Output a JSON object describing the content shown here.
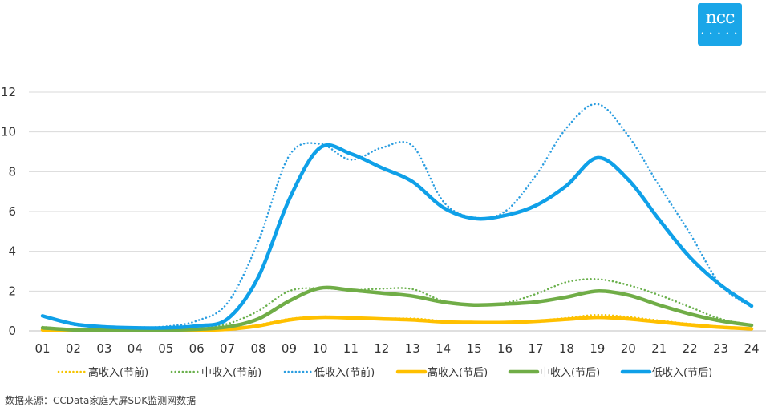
{
  "logo": {
    "text": "ncc",
    "dots": "• • • • •"
  },
  "source_text": "数据来源：CCData家庭大屏SDK监测网数据",
  "chart_data": {
    "type": "line",
    "categories": [
      "01",
      "02",
      "03",
      "04",
      "05",
      "06",
      "07",
      "08",
      "09",
      "10",
      "11",
      "12",
      "13",
      "14",
      "15",
      "16",
      "17",
      "18",
      "19",
      "20",
      "21",
      "22",
      "23",
      "24"
    ],
    "ylim": [
      0,
      12
    ],
    "yticks": [
      0,
      2,
      4,
      6,
      8,
      10,
      12
    ],
    "grid": true,
    "legend_position": "bottom",
    "series": [
      {
        "name": "高收入(节前)",
        "color": "#f5c400",
        "style": "dotted",
        "values": [
          0.05,
          0.02,
          0.02,
          0.02,
          0.03,
          0.05,
          0.12,
          0.3,
          0.6,
          0.72,
          0.68,
          0.62,
          0.62,
          0.5,
          0.42,
          0.42,
          0.5,
          0.65,
          0.8,
          0.7,
          0.52,
          0.35,
          0.22,
          0.12
        ]
      },
      {
        "name": "中收入(节前)",
        "color": "#6ab04c",
        "style": "dotted",
        "values": [
          0.2,
          0.05,
          0.03,
          0.03,
          0.05,
          0.1,
          0.35,
          1.0,
          2.0,
          2.15,
          2.05,
          2.12,
          2.1,
          1.5,
          1.3,
          1.4,
          1.85,
          2.45,
          2.6,
          2.3,
          1.8,
          1.2,
          0.6,
          0.3
        ]
      },
      {
        "name": "低收入(节前)",
        "color": "#2a9de0",
        "style": "dotted",
        "values": [
          0.75,
          0.3,
          0.2,
          0.18,
          0.22,
          0.5,
          1.4,
          4.5,
          8.8,
          9.4,
          8.6,
          9.2,
          9.3,
          6.5,
          5.7,
          6.0,
          7.8,
          10.2,
          11.4,
          9.8,
          7.3,
          4.9,
          2.3,
          1.2
        ]
      },
      {
        "name": "高收入(节后)",
        "color": "#ffc000",
        "style": "solid",
        "values": [
          0.05,
          0.02,
          0.02,
          0.02,
          0.02,
          0.03,
          0.08,
          0.25,
          0.55,
          0.68,
          0.65,
          0.6,
          0.55,
          0.45,
          0.42,
          0.42,
          0.48,
          0.58,
          0.68,
          0.6,
          0.45,
          0.3,
          0.18,
          0.1
        ]
      },
      {
        "name": "中收入(节后)",
        "color": "#70ad47",
        "style": "solid",
        "values": [
          0.15,
          0.05,
          0.03,
          0.03,
          0.04,
          0.08,
          0.2,
          0.6,
          1.5,
          2.15,
          2.05,
          1.9,
          1.75,
          1.45,
          1.3,
          1.35,
          1.45,
          1.7,
          2.0,
          1.8,
          1.3,
          0.85,
          0.5,
          0.28
        ]
      },
      {
        "name": "低收入(节后)",
        "color": "#0fa0e8",
        "style": "solid",
        "values": [
          0.75,
          0.35,
          0.2,
          0.15,
          0.15,
          0.25,
          0.6,
          2.7,
          6.6,
          9.2,
          8.9,
          8.2,
          7.5,
          6.2,
          5.65,
          5.8,
          6.3,
          7.3,
          8.7,
          7.6,
          5.6,
          3.7,
          2.3,
          1.25
        ]
      }
    ]
  }
}
